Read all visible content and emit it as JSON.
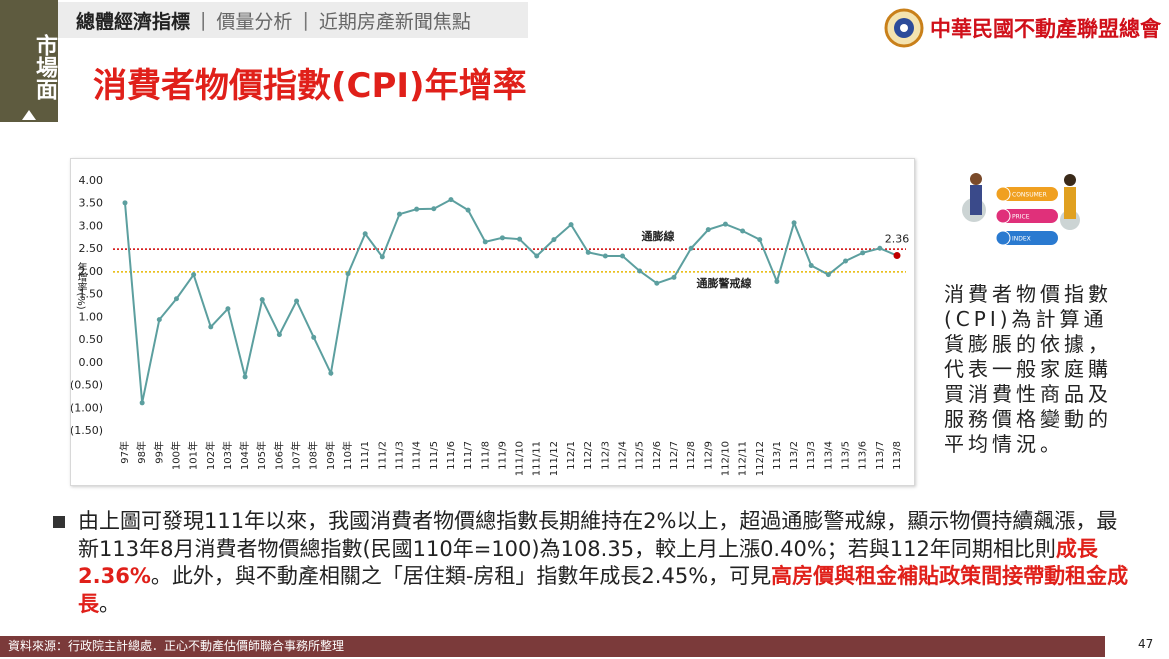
{
  "header": {
    "side_tab": "市場面",
    "tabs": [
      "總體經濟指標",
      "價量分析",
      "近期房產新聞焦點"
    ],
    "logo_text": "中華民國不動產聯盟總會"
  },
  "chart_data": {
    "type": "line",
    "title": "消費者物價指數(CPI)年增率",
    "y_label": "年增率(%)",
    "categories": [
      "97年",
      "98年",
      "99年",
      "100年",
      "101年",
      "102年",
      "103年",
      "104年",
      "105年",
      "106年",
      "107年",
      "108年",
      "109年",
      "110年",
      "111/1",
      "111/2",
      "111/3",
      "111/4",
      "111/5",
      "111/6",
      "111/7",
      "111/8",
      "111/9",
      "111/10",
      "111/11",
      "111/12",
      "112/1",
      "112/2",
      "112/3",
      "112/4",
      "112/5",
      "112/6",
      "112/7",
      "112/8",
      "112/9",
      "112/10",
      "112/11",
      "112/12",
      "113/1",
      "113/2",
      "113/3",
      "113/4",
      "113/5",
      "113/6",
      "113/7",
      "113/8"
    ],
    "values": [
      3.52,
      -0.88,
      0.95,
      1.41,
      1.94,
      0.79,
      1.19,
      -0.31,
      1.39,
      0.62,
      1.36,
      0.56,
      -0.23,
      1.96,
      2.84,
      2.33,
      3.27,
      3.38,
      3.39,
      3.59,
      3.36,
      2.66,
      2.75,
      2.72,
      2.35,
      2.71,
      3.04,
      2.43,
      2.35,
      2.35,
      2.02,
      1.75,
      1.88,
      2.52,
      2.93,
      3.05,
      2.9,
      2.71,
      1.79,
      3.08,
      2.14,
      1.94,
      2.24,
      2.42,
      2.52,
      2.36
    ],
    "color": "#5c9f9f",
    "label_last": true,
    "highlight_color": "#c00000",
    "ylim": [
      -1.5,
      4
    ],
    "yticks": [
      {
        "value": 4,
        "label": "4.00"
      },
      {
        "value": 3.5,
        "label": "3.50"
      },
      {
        "value": 3,
        "label": "3.00"
      },
      {
        "value": 2.5,
        "label": "2.50"
      },
      {
        "value": 2,
        "label": "2.00"
      },
      {
        "value": 1.5,
        "label": "1.50"
      },
      {
        "value": 1,
        "label": "1.00"
      },
      {
        "value": 0.5,
        "label": "0.50"
      },
      {
        "value": 0,
        "label": "0.00"
      },
      {
        "value": -0.5,
        "label": "(0.50)"
      },
      {
        "value": -1,
        "label": "(1.00)"
      },
      {
        "value": -1.5,
        "label": "(1.50)"
      }
    ],
    "negative_tick_color": "#c00000",
    "reference_lines": [
      {
        "value": 2.5,
        "label": "通膨線",
        "color": "#d00000"
      },
      {
        "value": 2,
        "label": "通膨警戒線",
        "color": "#e6b800"
      }
    ]
  },
  "illustration": [
    "CONSUMER",
    "PRICE",
    "INDEX"
  ],
  "side_text": "消費者物價指數(CPI)為計算通貨膨脹的依據，代表一般家庭購買消費性商品及服務價格變動的平均情況。",
  "bullet": [
    {
      "text": "由上圖可發現111年以來，我國消費者物價總指數長期維持在2%以上，超過通膨警戒線，顯示物價持續飆漲，最新113年8月消費者物價總指數(民國110年=100)為108.35，較上月上漲0.40%；若與112年同期相比則",
      "emphasis": false
    },
    {
      "text": "成長2.36%",
      "emphasis": true
    },
    {
      "text": "。此外，與不動產相關之「居住類-房租」指數年成長2.45%，可見",
      "emphasis": false
    },
    {
      "text": "高房價與租金補貼政策間接帶動租金成長",
      "emphasis": true
    },
    {
      "text": "。",
      "emphasis": false
    }
  ],
  "footer": {
    "source": "資料來源：行政院主計總處．正心不動產估價師聯合事務所整理",
    "page": 47
  }
}
